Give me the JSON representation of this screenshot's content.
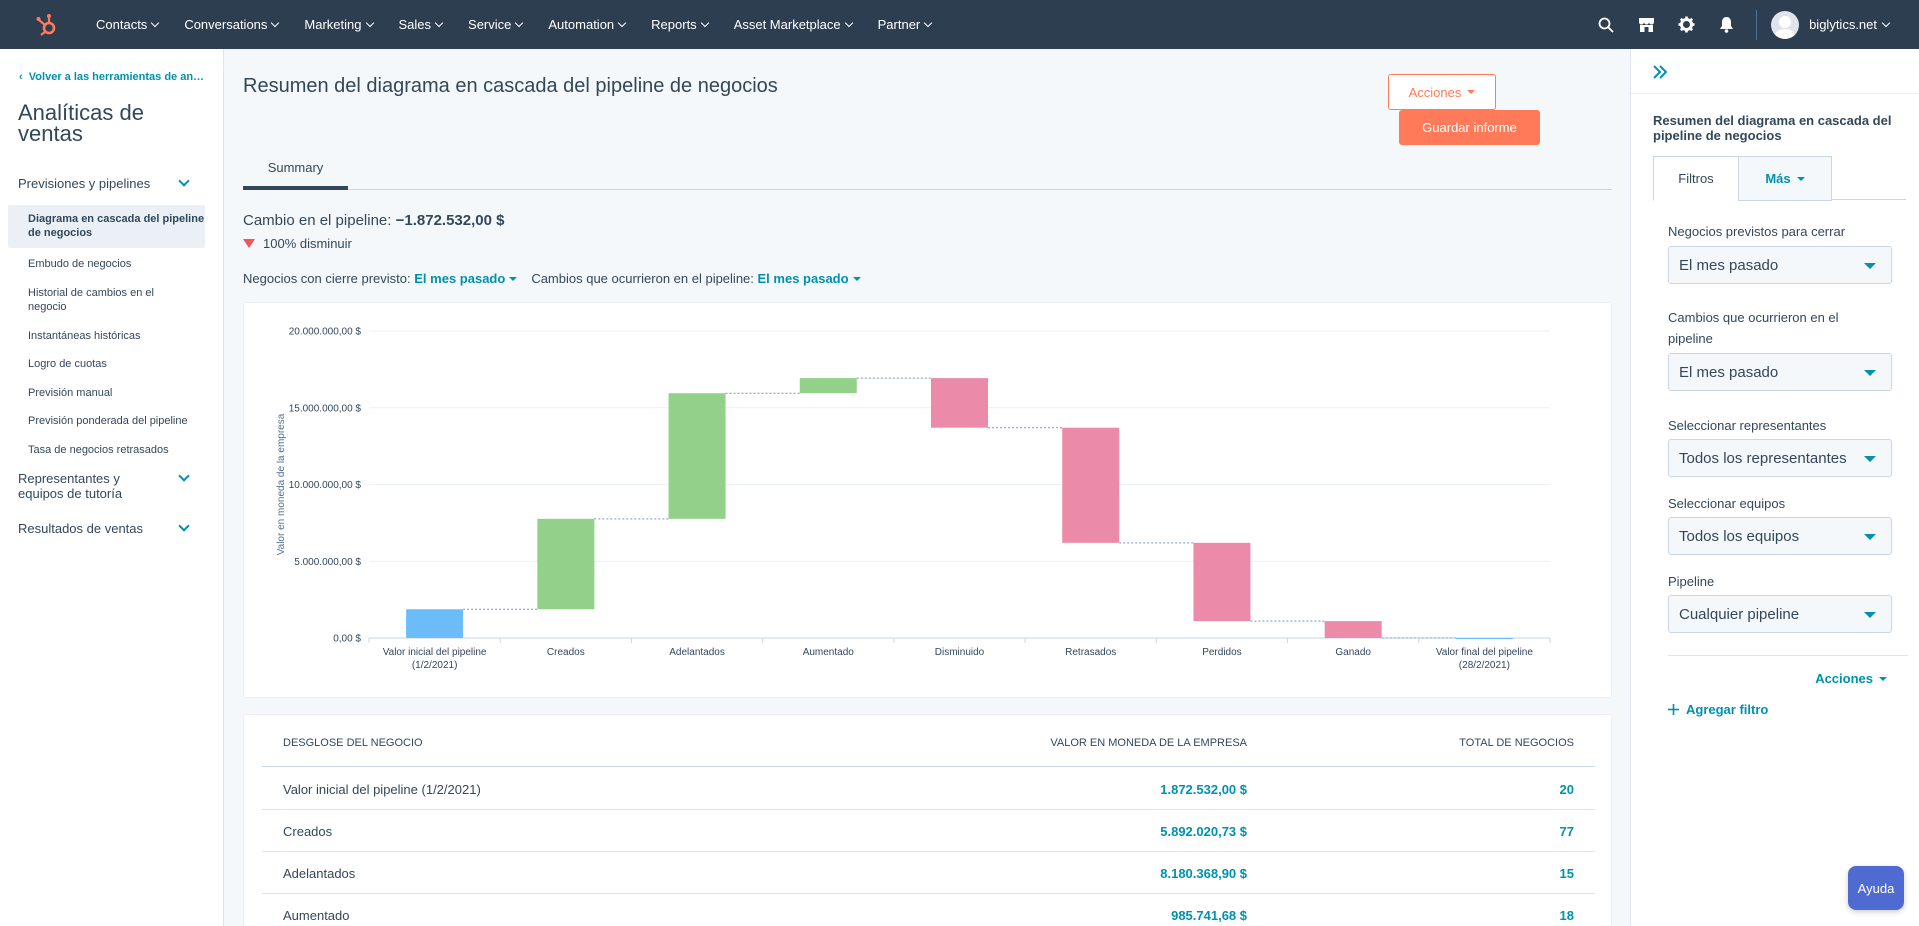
{
  "topnav": {
    "logo_icon": "hubspot-sprocket-icon",
    "items": [
      "Contacts",
      "Conversations",
      "Marketing",
      "Sales",
      "Service",
      "Automation",
      "Reports",
      "Asset Marketplace",
      "Partner"
    ],
    "account": "biglytics.net",
    "icons": [
      "search-icon",
      "marketplace-icon",
      "gear-icon",
      "bell-icon"
    ]
  },
  "sidebar": {
    "back_link": "Volver a las herramientas de análisis",
    "title": "Analíticas de ventas",
    "sections": [
      {
        "label": "Previsiones y pipelines",
        "items": [
          {
            "label": "Diagrama en cascada del pipeline de negocios",
            "active": true
          },
          {
            "label": "Embudo de negocios"
          },
          {
            "label": "Historial de cambios en el negocio"
          },
          {
            "label": "Instantáneas históricas"
          },
          {
            "label": "Logro de cuotas"
          },
          {
            "label": "Previsión manual"
          },
          {
            "label": "Previsión ponderada del pipeline"
          },
          {
            "label": "Tasa de negocios retrasados"
          }
        ]
      },
      {
        "label": "Representantes y equipos de tutoría"
      },
      {
        "label": "Resultados de ventas"
      }
    ]
  },
  "main": {
    "title": "Resumen del diagrama en cascada del pipeline de negocios",
    "actions_label": "Acciones",
    "save_label": "Guardar informe",
    "tab": "Summary",
    "change_label": "Cambio en el pipeline:",
    "change_value": "−1.872.532,00 $",
    "decrease_text": "100% disminuir",
    "filter1_label": "Negocios con cierre previsto:",
    "filter1_value": "El mes pasado",
    "filter2_label": "Cambios que ocurrieron en el pipeline:",
    "filter2_value": "El mes pasado"
  },
  "chart_data": {
    "type": "bar",
    "subtype": "waterfall",
    "ylabel": "Valor en moneda de la empresa",
    "ylim": [
      0,
      20000000
    ],
    "yticks": [
      "0,00 $",
      "5.000.000,00 $",
      "10.000.000,00 $",
      "15.000.000,00 $",
      "20.000.000,00 $"
    ],
    "categories": [
      "Valor inicial del pipeline (1/2/2021)",
      "Creados",
      "Adelantados",
      "Aumentado",
      "Disminuido",
      "Retrasados",
      "Perdidos",
      "Ganado",
      "Valor final del pipeline (28/2/2021)"
    ],
    "bars": [
      {
        "start": 0,
        "end": 1872532,
        "color": "#6bbcf8"
      },
      {
        "start": 1872532,
        "end": 7764553,
        "color": "#93d08a"
      },
      {
        "start": 7764553,
        "end": 15944922,
        "color": "#93d08a"
      },
      {
        "start": 15944922,
        "end": 16930664,
        "color": "#93d08a"
      },
      {
        "start": 16930664,
        "end": 13700000,
        "color": "#ec8aaa"
      },
      {
        "start": 13700000,
        "end": 6200000,
        "color": "#ec8aaa"
      },
      {
        "start": 6200000,
        "end": 1100000,
        "color": "#ec8aaa"
      },
      {
        "start": 1100000,
        "end": 0,
        "color": "#ec8aaa"
      },
      {
        "start": 0,
        "end": 0,
        "color": "#6bbcf8"
      }
    ],
    "grid": true,
    "legend": "none"
  },
  "table": {
    "headers": [
      "DESGLOSE DEL NEGOCIO",
      "VALOR EN MONEDA DE LA EMPRESA",
      "TOTAL DE NEGOCIOS"
    ],
    "rows": [
      {
        "label": "Valor inicial del pipeline (1/2/2021)",
        "value": "1.872.532,00 $",
        "count": "20"
      },
      {
        "label": "Creados",
        "value": "5.892.020,73 $",
        "count": "77"
      },
      {
        "label": "Adelantados",
        "value": "8.180.368,90 $",
        "count": "15"
      },
      {
        "label": "Aumentado",
        "value": "985.741,68 $",
        "count": "18"
      }
    ]
  },
  "rpanel": {
    "title": "Resumen del diagrama en cascada del pipeline de negocios",
    "tab_filters": "Filtros",
    "tab_more": "Más",
    "fields": [
      {
        "label": "Negocios previstos para cerrar",
        "value": "El mes pasado"
      },
      {
        "label": "Cambios que ocurrieron en el pipeline",
        "value": "El mes pasado"
      },
      {
        "label": "Seleccionar representantes",
        "value": "Todos los representantes"
      },
      {
        "label": "Seleccionar equipos",
        "value": "Todos los equipos"
      },
      {
        "label": "Pipeline",
        "value": "Cualquier pipeline"
      }
    ],
    "actions_label": "Acciones",
    "add_filter": "Agregar filtro"
  },
  "help_label": "Ayuda"
}
